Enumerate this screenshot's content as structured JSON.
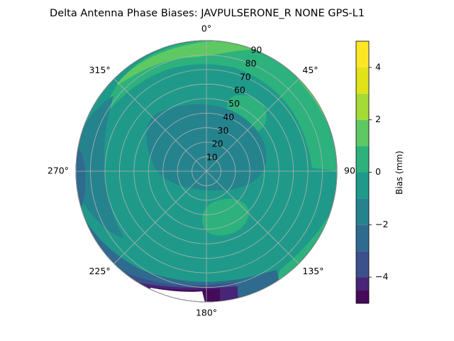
{
  "chart_data": {
    "type": "polar-contour",
    "title": "Delta Antenna Phase Biases: JAVPULSERONE_R  NONE GPS-L1",
    "azimuth_labels": [
      "0°",
      "45°",
      "90°",
      "135°",
      "180°",
      "225°",
      "270°",
      "315°"
    ],
    "azimuth_label_values": [
      0,
      45,
      90,
      135,
      180,
      225,
      270,
      315
    ],
    "radial_tick_labels": [
      "10",
      "20",
      "30",
      "40",
      "50",
      "60",
      "70",
      "80",
      "90"
    ],
    "radial_tick_values": [
      10,
      20,
      30,
      40,
      50,
      60,
      70,
      80,
      90
    ],
    "radial_range": [
      0,
      90
    ],
    "colorbar": {
      "label": "Bias (mm)",
      "range": [
        -5,
        5
      ],
      "tick_labels": [
        "−4",
        "−2",
        "0",
        "2",
        "4"
      ],
      "tick_values": [
        -4,
        -2,
        0,
        2,
        4
      ],
      "levels": [
        -5,
        -4.5,
        -4,
        -3,
        -2,
        -1,
        0,
        1,
        2,
        3,
        4,
        5
      ],
      "colors": [
        "#450b5a",
        "#482576",
        "#3b518b",
        "#2f6b8e",
        "#25838e",
        "#1f9a8a",
        "#2db27d",
        "#5ec962",
        "#a5db36",
        "#dfe318",
        "#fde725"
      ]
    },
    "grid": true,
    "zero_azimuth": "top",
    "direction": "clockwise"
  }
}
